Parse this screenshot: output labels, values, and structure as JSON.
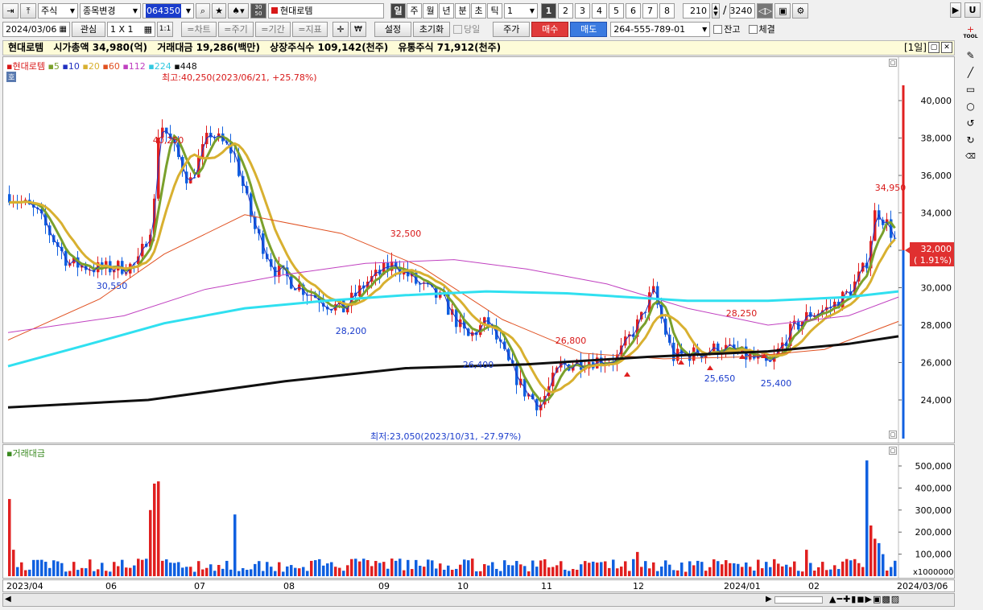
{
  "toolbar1": {
    "market": "주식",
    "change_btn": "종목변경",
    "code": "064350",
    "stock_name": "현대로템",
    "periods": [
      "일",
      "주",
      "월",
      "년",
      "분",
      "초",
      "틱"
    ],
    "period_value": "1",
    "nums": [
      "1",
      "2",
      "3",
      "4",
      "5",
      "6",
      "7",
      "8"
    ],
    "count": "210",
    "total": "3240",
    "slash": "/",
    "u_label": "U"
  },
  "toolbar2": {
    "date": "2024/03/06",
    "watch": "관심",
    "layout": "1 X 1",
    "one": "1:1",
    "btn_chart": "=차트",
    "btn_cycle": "=주기",
    "btn_period": "=기간",
    "btn_indicator": "=지표",
    "setting": "설정",
    "reset": "초기화",
    "same_day": "당일",
    "price": "주가",
    "buy": "매수",
    "sell": "매도",
    "account": "264-555-789-01",
    "balance": "잔고",
    "filled": "체결",
    "tool_label": "TOOL"
  },
  "info": {
    "name": "현대로템",
    "mcap_label": "시가총액",
    "mcap": "34,980(억)",
    "vol_label": "거래대금",
    "vol": "19,286(백만)",
    "listed_label": "상장주식수",
    "listed": "109,142(천주)",
    "float_label": "유통주식",
    "float": "71,912(천주)",
    "period_tag": "[1일]"
  },
  "legend": {
    "name": "현대로템",
    "ma": [
      "5",
      "10",
      "20",
      "60",
      "112",
      "224",
      "448"
    ],
    "badge": "호",
    "vol_title": "거래대금"
  },
  "price_axis": [
    "40,000",
    "38,000",
    "36,000",
    "34,000",
    "32,000",
    "30,000",
    "28,000",
    "26,000",
    "24,000"
  ],
  "vol_axis": [
    "500,000",
    "400,000",
    "300,000",
    "200,000",
    "100,000"
  ],
  "vol_unit": "x1000000",
  "last_price": "32,000",
  "last_change": "( 1.91%)",
  "annotations": {
    "high": "최고:40,250(2023/06/21, +25.78%)",
    "low": "최저:23,050(2023/10/31, -27.97%)",
    "labels": [
      "40,250",
      "30,550",
      "28,200",
      "32,500",
      "26,400",
      "26,800",
      "28,250",
      "25,650",
      "25,400",
      "34,950"
    ]
  },
  "x_axis": [
    "2023/04",
    "06",
    "07",
    "08",
    "09",
    "10",
    "11",
    "12",
    "2024/01",
    "02",
    "2024/03/06"
  ],
  "colors": {
    "up": "#e02020",
    "down": "#1060e0",
    "ma5": "#7aa02c",
    "ma10": "#2030c0",
    "ma20": "#d8b030",
    "ma60": "#e05020",
    "ma112": "#c040c0",
    "ma224": "#30e0f0",
    "ma448": "#101010"
  }
}
